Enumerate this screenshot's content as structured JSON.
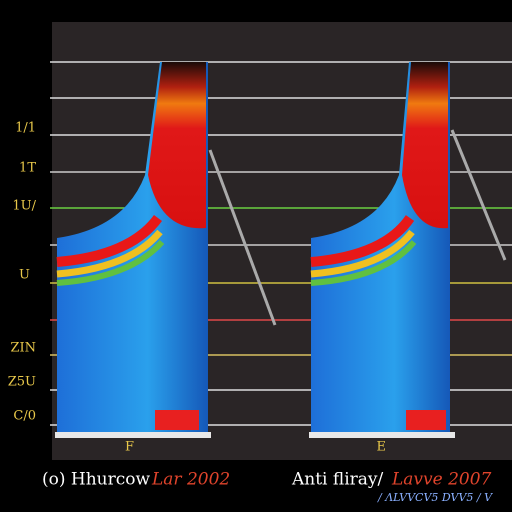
{
  "axis_labels": [
    "1/1",
    "1T",
    "1U/",
    "U",
    "ZIN",
    "Z5U",
    "C/0"
  ],
  "bottom_marks": [
    "F",
    "E"
  ],
  "captions": [
    {
      "left": "(o) Hhurcow",
      "right": "Lar 2002"
    },
    {
      "left": "Anti fliray/",
      "right": "Lavve 2007"
    }
  ],
  "footnote": "/ ΛLVVCV5 DVV5 / V"
}
